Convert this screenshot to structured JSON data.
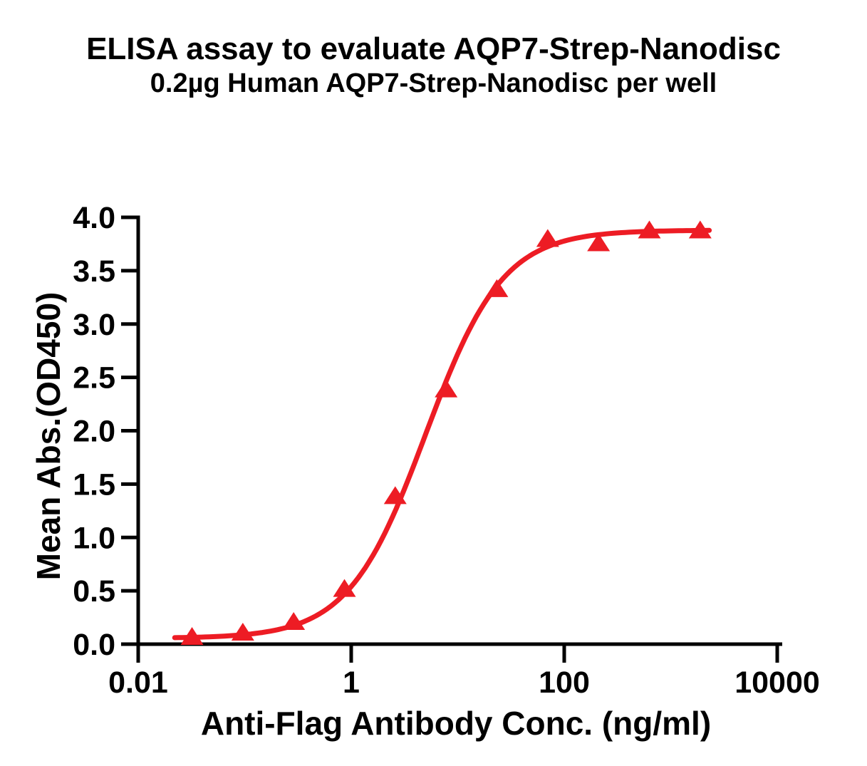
{
  "figure": {
    "title": "ELISA assay to evaluate AQP7-Strep-Nanodisc",
    "subtitle": "0.2µg Human AQP7-Strep-Nanodisc per well"
  },
  "chart_data": {
    "type": "scatter",
    "title": "ELISA assay to evaluate AQP7-Strep-Nanodisc",
    "subtitle": "0.2µg Human AQP7-Strep-Nanodisc per well",
    "xlabel": "Anti-Flag Antibody Conc. (ng/ml)",
    "ylabel": "Mean Abs.(OD450)",
    "x_scale": "log10",
    "xlim": [
      0.01,
      10000
    ],
    "ylim": [
      0.0,
      4.0
    ],
    "x_ticks": [
      0.01,
      1,
      100,
      10000
    ],
    "x_tick_labels": [
      "0.01",
      "1",
      "100",
      "10000"
    ],
    "y_ticks": [
      0.0,
      0.5,
      1.0,
      1.5,
      2.0,
      2.5,
      3.0,
      3.5,
      4.0
    ],
    "y_tick_labels": [
      "0.0",
      "0.5",
      "1.0",
      "1.5",
      "2.0",
      "2.5",
      "3.0",
      "3.5",
      "4.0"
    ],
    "grid": false,
    "legend": false,
    "series": [
      {
        "name": "Human AQP7-Strep-Nanodisc",
        "marker": "triangle-up",
        "color": "#ED1C24",
        "x": [
          0.032,
          0.096,
          0.288,
          0.864,
          2.59,
          7.78,
          23.3,
          70,
          210,
          630,
          1890
        ],
        "y": [
          0.06,
          0.1,
          0.2,
          0.51,
          1.38,
          2.38,
          3.32,
          3.79,
          3.75,
          3.87,
          3.87
        ]
      }
    ],
    "fit_curve": {
      "model": "4PL",
      "bottom": 0.055,
      "top": 3.88,
      "ec50": 5.0,
      "hill": 1.2,
      "x_range": [
        0.022,
        2300
      ],
      "color": "#ED1C24"
    }
  },
  "colors": {
    "accent": "#ED1C24",
    "text": "#000000",
    "background": "#FFFFFF"
  }
}
